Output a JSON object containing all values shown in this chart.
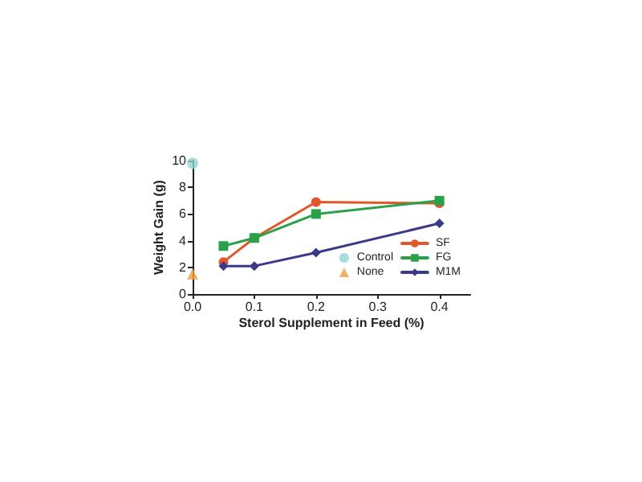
{
  "chart_data": {
    "type": "line",
    "xlabel": "Sterol Supplement in Feed (%)",
    "ylabel": "Weight Gain (g)",
    "xlim": [
      0,
      0.45
    ],
    "xticks": [
      {
        "value": 0,
        "label": "0.0"
      },
      {
        "value": 0.1,
        "label": "0.1"
      },
      {
        "value": 0.2,
        "label": "0.2"
      },
      {
        "value": 0.3,
        "label": "0.3"
      },
      {
        "value": 0.4,
        "label": "0.4"
      }
    ],
    "ylim": [
      0,
      10
    ],
    "yticks": [
      0,
      2,
      4,
      6,
      8,
      10
    ],
    "grid": false,
    "legend": "bottom right",
    "series": [
      {
        "name": "Control",
        "type": "scatter",
        "marker": "circle",
        "color": "#8fd3d3",
        "x": [
          0
        ],
        "values": [
          9.8
        ]
      },
      {
        "name": "None",
        "type": "scatter",
        "marker": "triangle",
        "color": "#f0a040",
        "x": [
          0
        ],
        "values": [
          1.5
        ]
      },
      {
        "name": "SF",
        "marker": "circle",
        "color": "#e0582a",
        "x": [
          0.05,
          0.1,
          0.2,
          0.4
        ],
        "values": [
          2.4,
          4.2,
          6.9,
          6.8
        ]
      },
      {
        "name": "FG",
        "marker": "square",
        "color": "#2aa04a",
        "x": [
          0.05,
          0.1,
          0.2,
          0.4
        ],
        "values": [
          3.6,
          4.2,
          6.0,
          7.0
        ]
      },
      {
        "name": "M1M",
        "marker": "diamond",
        "color": "#3a3a8a",
        "x": [
          0.05,
          0.1,
          0.2,
          0.4
        ],
        "values": [
          2.1,
          2.1,
          3.1,
          5.3
        ]
      }
    ]
  }
}
